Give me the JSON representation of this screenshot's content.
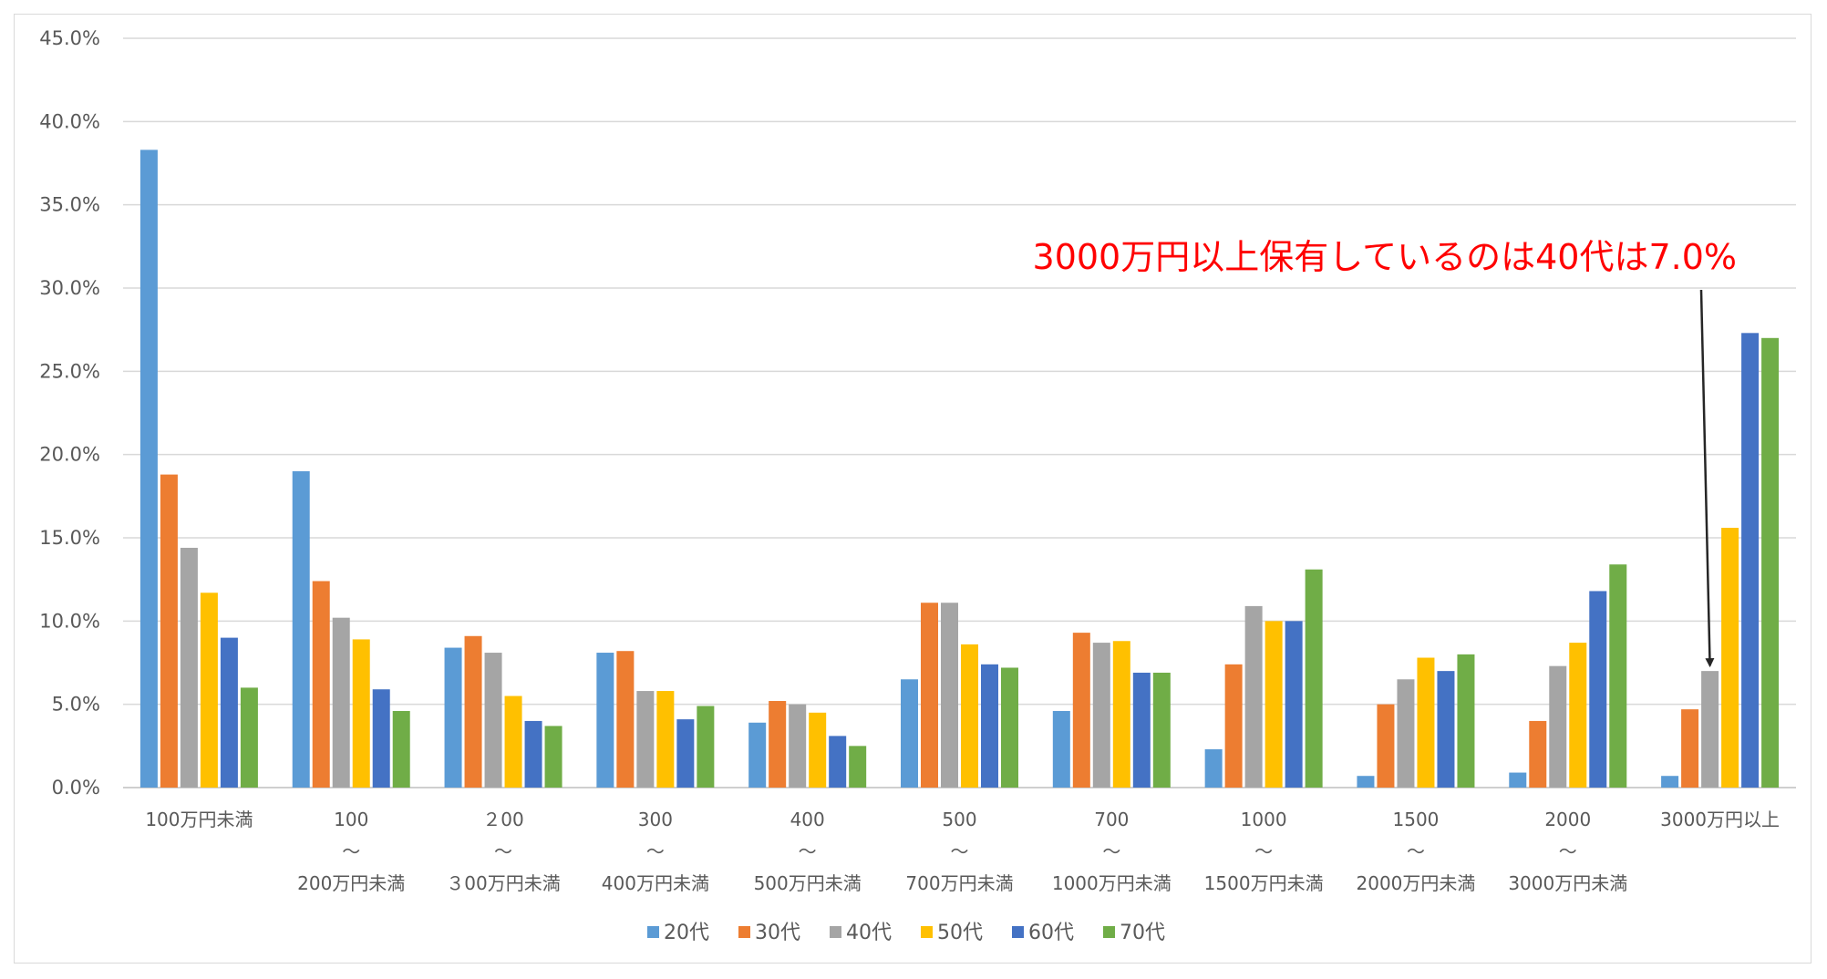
{
  "chart_data": {
    "type": "bar",
    "title": "",
    "xlabel": "",
    "ylabel": "",
    "ylim": [
      0,
      45
    ],
    "y_tick_labels": [
      "0.0%",
      "5.0%",
      "10.0%",
      "15.0%",
      "20.0%",
      "25.0%",
      "30.0%",
      "35.0%",
      "40.0%",
      "45.0%"
    ],
    "grid": true,
    "legend_position": "bottom",
    "categories": [
      [
        "100万円未満"
      ],
      [
        "100",
        "～",
        "200万円未満"
      ],
      [
        "２00",
        "～",
        "３00万円未満"
      ],
      [
        "300",
        "～",
        "400万円未満"
      ],
      [
        "400",
        "～",
        "500万円未満"
      ],
      [
        "500",
        "～",
        "700万円未満"
      ],
      [
        "700",
        "～",
        "1000万円未満"
      ],
      [
        "1000",
        "～",
        "1500万円未満"
      ],
      [
        "1500",
        "～",
        "2000万円未満"
      ],
      [
        "2000",
        "～",
        "3000万円未満"
      ],
      [
        "3000万円以上"
      ]
    ],
    "series": [
      {
        "name": "20代",
        "color": "#5b9bd5",
        "values": [
          38.3,
          19.0,
          8.4,
          8.1,
          3.9,
          6.5,
          4.6,
          2.3,
          0.7,
          0.9,
          0.7
        ]
      },
      {
        "name": "30代",
        "color": "#ed7d31",
        "values": [
          18.8,
          12.4,
          9.1,
          8.2,
          5.2,
          11.1,
          9.3,
          7.4,
          5.0,
          4.0,
          4.7
        ]
      },
      {
        "name": "40代",
        "color": "#a5a5a5",
        "values": [
          14.4,
          10.2,
          8.1,
          5.8,
          5.0,
          11.1,
          8.7,
          10.9,
          6.5,
          7.3,
          7.0
        ]
      },
      {
        "name": "50代",
        "color": "#ffc000",
        "values": [
          11.7,
          8.9,
          5.5,
          5.8,
          4.5,
          8.6,
          8.8,
          10.0,
          7.8,
          8.7,
          15.6
        ]
      },
      {
        "name": "60代",
        "color": "#4472c4",
        "values": [
          9.0,
          5.9,
          4.0,
          4.1,
          3.1,
          7.4,
          6.9,
          10.0,
          7.0,
          11.8,
          27.3
        ]
      },
      {
        "name": "70代",
        "color": "#70ad47",
        "values": [
          6.0,
          4.6,
          3.7,
          4.9,
          2.5,
          7.2,
          6.9,
          13.1,
          8.0,
          13.4,
          27.0
        ]
      }
    ],
    "annotation": {
      "text": "3000万円以上保有しているのは40代は7.0%",
      "color": "#ff0000",
      "target_category": 10,
      "target_series": 2
    }
  }
}
